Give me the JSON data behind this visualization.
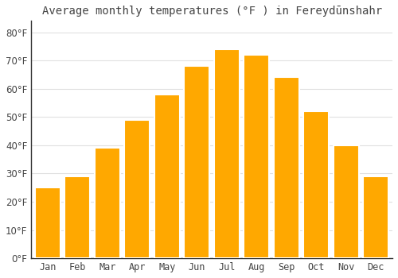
{
  "title": "Average monthly temperatures (°F ) in Fereydūnshahr",
  "months": [
    "Jan",
    "Feb",
    "Mar",
    "Apr",
    "May",
    "Jun",
    "Jul",
    "Aug",
    "Sep",
    "Oct",
    "Nov",
    "Dec"
  ],
  "values": [
    25,
    29,
    39,
    49,
    58,
    68,
    74,
    72,
    64,
    52,
    40,
    29
  ],
  "bar_color": "#FFA800",
  "bar_color_light": "#FFD070",
  "background_color": "#FFFFFF",
  "grid_color": "#E0E0E0",
  "text_color": "#444444",
  "spine_color": "#333333",
  "ylim": [
    0,
    84
  ],
  "yticks": [
    0,
    10,
    20,
    30,
    40,
    50,
    60,
    70,
    80
  ],
  "ylabel_suffix": "°F",
  "title_fontsize": 10,
  "tick_fontsize": 8.5
}
